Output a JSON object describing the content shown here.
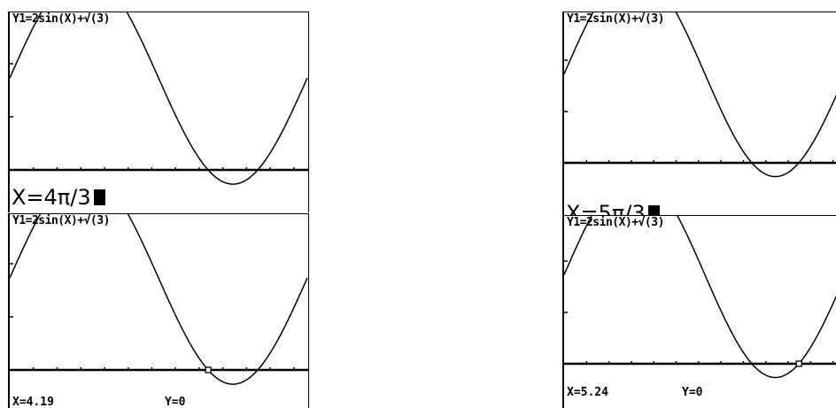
{
  "equation": "Y1=2sin(X)+√(3)",
  "screens": {
    "top_left": {
      "entry": "X=4π/3"
    },
    "top_right": {
      "entry": "X=5π/3"
    },
    "bottom_left": {
      "x_readout": "X=4.19",
      "y_readout": "Y=0"
    },
    "bottom_right": {
      "x_readout": "X=5.24",
      "y_readout": "Y=0"
    }
  },
  "graph": {
    "function": "2sin(X)+√(3)",
    "x_range": [
      0,
      6.2832
    ],
    "y_range": [
      -0.3,
      3.8
    ],
    "x_ticks": [
      0.5,
      1,
      1.5,
      2,
      2.5,
      3,
      3.5,
      4,
      4.5,
      5,
      5.5,
      6
    ],
    "trace_points": {
      "bottom_left": 4.19,
      "bottom_right": 5.24
    }
  }
}
